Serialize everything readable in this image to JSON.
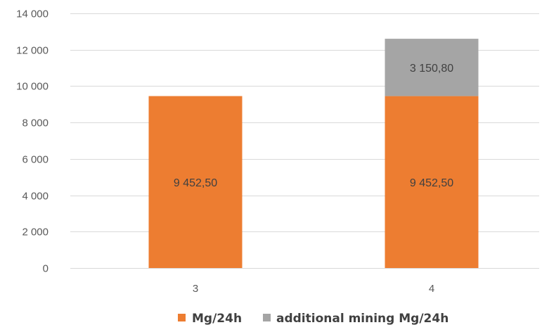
{
  "chart_data": {
    "type": "bar",
    "stacked": true,
    "categories": [
      "3",
      "4"
    ],
    "series": [
      {
        "name": "Mg/24h",
        "values": [
          9452.5,
          9452.5
        ],
        "labels": [
          "9 452,50",
          "9 452,50"
        ],
        "color": "#ed7d31"
      },
      {
        "name": "additional mining Mg/24h",
        "values": [
          0,
          3150.8
        ],
        "labels": [
          "",
          "3 150,80"
        ],
        "color": "#a5a5a5"
      }
    ],
    "ylim": [
      0,
      14000
    ],
    "yticks": [
      0,
      2000,
      4000,
      6000,
      8000,
      10000,
      12000,
      14000
    ],
    "ytick_labels": [
      "0",
      "2 000",
      "4 000",
      "6 000",
      "8 000",
      "10 000",
      "12 000",
      "14 000"
    ],
    "grid": true,
    "gridline_color": "#d9d9d9",
    "legend_position": "bottom",
    "title": "",
    "xlabel": "",
    "ylabel": ""
  }
}
